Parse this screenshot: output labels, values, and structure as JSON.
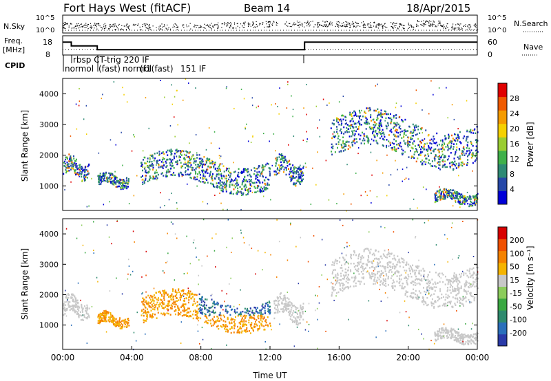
{
  "header": {
    "station": "Fort Hays West (fitACF)",
    "beam": "Beam 14",
    "date": "18/Apr/2015"
  },
  "chart_data": [
    {
      "type": "scatter",
      "panel": "noise",
      "labels": {
        "left": "N.Sky",
        "right": "N.Search"
      },
      "left_ticks": [
        "10^5",
        "10^0"
      ],
      "right_ticks": [
        "10^5",
        "10^0"
      ],
      "series": [
        {
          "name": "N.Sky",
          "style": "points"
        },
        {
          "name": "N.Search",
          "style": "dotted"
        }
      ]
    },
    {
      "type": "line",
      "panel": "frequency",
      "labels": {
        "left": "Freq.",
        "left_unit": "[MHz]",
        "right": "Nave"
      },
      "left_ticks": [
        "18",
        "8"
      ],
      "right_ticks": [
        "60",
        "0"
      ],
      "x_hours": [
        0,
        0.5,
        0.5,
        2.0,
        2.0,
        14.0,
        14.0,
        24.0
      ],
      "freq_mhz": [
        16.5,
        16.5,
        14.0,
        14.0,
        11.5,
        11.5,
        16.5,
        16.5
      ]
    },
    {
      "type": "table",
      "panel": "cpid",
      "label": "CPID",
      "entries": [
        "normol",
        "rbsp CT-trig 220 IF",
        "(fast)",
        "normol",
        "(f",
        "1(fast)",
        "151 IF"
      ]
    },
    {
      "type": "heatmap",
      "panel": "power",
      "ylabel": "Slant Range [km]",
      "yticks": [
        1000,
        2000,
        3000,
        4000
      ],
      "ylim": [
        200,
        4500
      ],
      "xlim_hours": [
        0,
        24
      ],
      "colorbar": {
        "label": "Power [dB]",
        "ticks": [
          4,
          8,
          12,
          16,
          20,
          24,
          28
        ]
      },
      "scatter_bands": [
        {
          "t": [
            0.0,
            1.5
          ],
          "range_km": [
            1200,
            2000
          ]
        },
        {
          "t": [
            2.0,
            3.8
          ],
          "range_km": [
            950,
            1450
          ]
        },
        {
          "t": [
            4.5,
            12.0
          ],
          "range_km": [
            850,
            2100
          ]
        },
        {
          "t": [
            12.2,
            13.9
          ],
          "range_km": [
            1100,
            2000
          ]
        },
        {
          "t": [
            15.5,
            24.0
          ],
          "range_km": [
            1700,
            3400
          ]
        },
        {
          "t": [
            21.5,
            24.0
          ],
          "range_km": [
            400,
            900
          ]
        }
      ]
    },
    {
      "type": "heatmap",
      "panel": "velocity",
      "ylabel": "Slant Range [km]",
      "yticks": [
        1000,
        2000,
        3000,
        4000
      ],
      "ylim": [
        200,
        4500
      ],
      "xlim_hours": [
        0,
        24
      ],
      "xticks": [
        "00:00",
        "04:00",
        "08:00",
        "12:00",
        "16:00",
        "20:00",
        "00:00"
      ],
      "xlabel": "Time UT",
      "colorbar": {
        "label": "Velocity [m s⁻¹]",
        "ticks": [
          200,
          100,
          50,
          15,
          -15,
          -50,
          -100,
          -200
        ]
      }
    }
  ],
  "colors": {
    "power_scale": [
      "#0000d8",
      "#2648a8",
      "#2e8a74",
      "#3fb04a",
      "#9acd32",
      "#f5d000",
      "#f59b00",
      "#ef5a00",
      "#e00000"
    ],
    "velocity_scale": [
      "#2a3aa8",
      "#2a6fbb",
      "#2e8a6e",
      "#3aa842",
      "#8ccc5c",
      "#c8c8c8",
      "#f5b400",
      "#f58200",
      "#f05000",
      "#d80000"
    ]
  }
}
